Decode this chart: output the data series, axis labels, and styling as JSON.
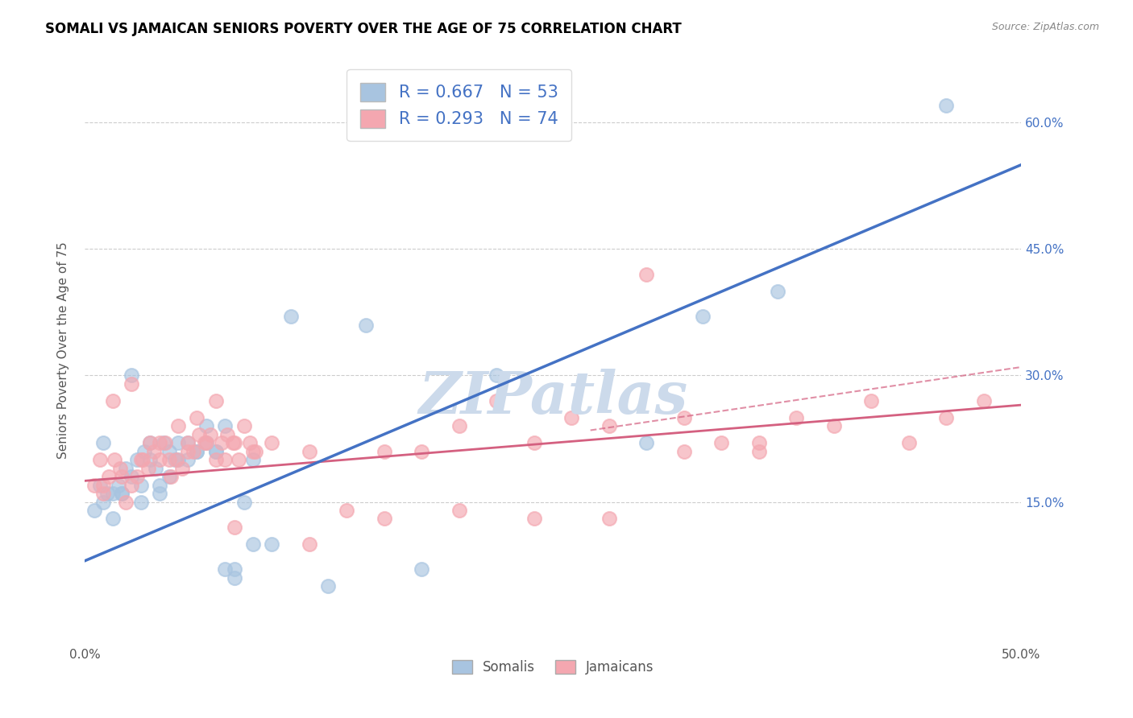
{
  "title": "SOMALI VS JAMAICAN SENIORS POVERTY OVER THE AGE OF 75 CORRELATION CHART",
  "source": "Source: ZipAtlas.com",
  "ylabel": "Seniors Poverty Over the Age of 75",
  "xlim": [
    0.0,
    0.5
  ],
  "ylim": [
    -0.02,
    0.68
  ],
  "yticks": [
    0.15,
    0.3,
    0.45,
    0.6
  ],
  "ytick_labels": [
    "15.0%",
    "30.0%",
    "45.0%",
    "60.0%"
  ],
  "xticks": [
    0.0,
    0.1,
    0.2,
    0.3,
    0.4,
    0.5
  ],
  "xtick_labels": [
    "0.0%",
    "",
    "",
    "",
    "",
    "50.0%"
  ],
  "somali_R": 0.667,
  "somali_N": 53,
  "jamaican_R": 0.293,
  "jamaican_N": 74,
  "somali_color": "#a8c4e0",
  "jamaican_color": "#f4a7b0",
  "somali_line_color": "#4472c4",
  "jamaican_line_color": "#d46080",
  "watermark": "ZIPatlas",
  "watermark_color": "#ccdaeb",
  "somali_line": [
    0.0,
    0.08,
    0.5,
    0.55
  ],
  "jamaican_line": [
    0.0,
    0.175,
    0.5,
    0.265
  ],
  "jamaican_dashed_line": [
    0.27,
    0.235,
    0.5,
    0.31
  ],
  "somali_x": [
    0.005,
    0.008,
    0.01,
    0.012,
    0.015,
    0.018,
    0.02,
    0.022,
    0.025,
    0.028,
    0.03,
    0.032,
    0.035,
    0.038,
    0.04,
    0.042,
    0.045,
    0.048,
    0.05,
    0.055,
    0.06,
    0.065,
    0.07,
    0.075,
    0.08,
    0.085,
    0.09,
    0.01,
    0.015,
    0.02,
    0.025,
    0.03,
    0.035,
    0.04,
    0.045,
    0.05,
    0.055,
    0.06,
    0.065,
    0.07,
    0.075,
    0.08,
    0.09,
    0.1,
    0.11,
    0.13,
    0.15,
    0.18,
    0.22,
    0.3,
    0.33,
    0.37,
    0.46
  ],
  "somali_y": [
    0.14,
    0.17,
    0.15,
    0.16,
    0.13,
    0.17,
    0.16,
    0.19,
    0.18,
    0.2,
    0.15,
    0.21,
    0.2,
    0.19,
    0.17,
    0.22,
    0.21,
    0.2,
    0.2,
    0.22,
    0.21,
    0.22,
    0.21,
    0.24,
    0.07,
    0.15,
    0.2,
    0.22,
    0.16,
    0.16,
    0.3,
    0.17,
    0.22,
    0.16,
    0.18,
    0.22,
    0.2,
    0.21,
    0.24,
    0.21,
    0.07,
    0.06,
    0.1,
    0.1,
    0.37,
    0.05,
    0.36,
    0.07,
    0.3,
    0.22,
    0.37,
    0.4,
    0.62
  ],
  "jamaican_x": [
    0.005,
    0.008,
    0.01,
    0.013,
    0.016,
    0.019,
    0.022,
    0.025,
    0.028,
    0.031,
    0.034,
    0.037,
    0.04,
    0.043,
    0.046,
    0.049,
    0.052,
    0.055,
    0.058,
    0.061,
    0.064,
    0.067,
    0.07,
    0.073,
    0.076,
    0.079,
    0.082,
    0.085,
    0.088,
    0.091,
    0.01,
    0.015,
    0.02,
    0.025,
    0.03,
    0.035,
    0.04,
    0.045,
    0.05,
    0.055,
    0.06,
    0.065,
    0.07,
    0.075,
    0.08,
    0.09,
    0.1,
    0.12,
    0.14,
    0.16,
    0.18,
    0.2,
    0.22,
    0.24,
    0.26,
    0.28,
    0.3,
    0.32,
    0.34,
    0.36,
    0.38,
    0.4,
    0.42,
    0.44,
    0.46,
    0.48,
    0.16,
    0.2,
    0.24,
    0.28,
    0.32,
    0.36,
    0.12,
    0.08
  ],
  "jamaican_y": [
    0.17,
    0.2,
    0.16,
    0.18,
    0.2,
    0.19,
    0.15,
    0.17,
    0.18,
    0.2,
    0.19,
    0.21,
    0.2,
    0.22,
    0.18,
    0.2,
    0.19,
    0.22,
    0.21,
    0.23,
    0.22,
    0.23,
    0.2,
    0.22,
    0.23,
    0.22,
    0.2,
    0.24,
    0.22,
    0.21,
    0.17,
    0.27,
    0.18,
    0.29,
    0.2,
    0.22,
    0.22,
    0.2,
    0.24,
    0.21,
    0.25,
    0.22,
    0.27,
    0.2,
    0.22,
    0.21,
    0.22,
    0.21,
    0.14,
    0.21,
    0.21,
    0.24,
    0.27,
    0.22,
    0.25,
    0.24,
    0.42,
    0.25,
    0.22,
    0.22,
    0.25,
    0.24,
    0.27,
    0.22,
    0.25,
    0.27,
    0.13,
    0.14,
    0.13,
    0.13,
    0.21,
    0.21,
    0.1,
    0.12
  ]
}
